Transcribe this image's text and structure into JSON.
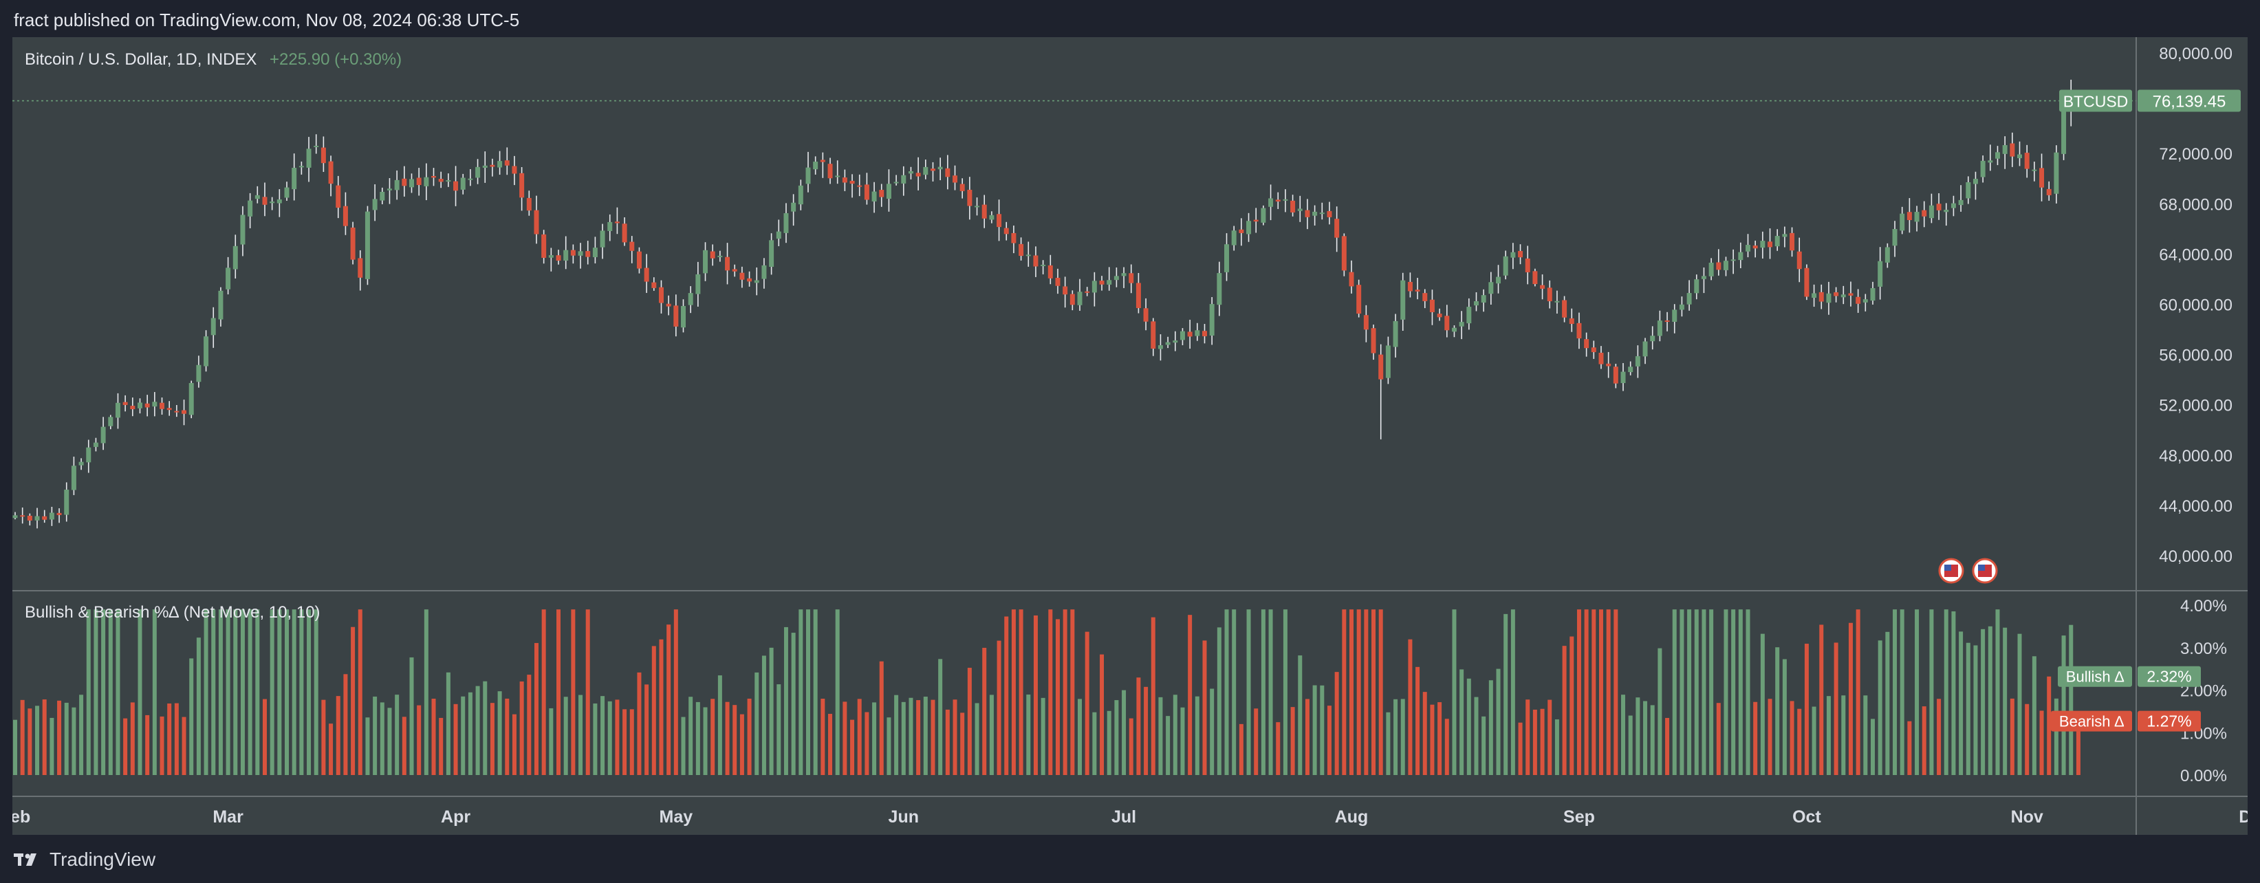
{
  "header": {
    "published_text": "fract published on TradingView.com, Nov 08, 2024 06:38 UTC-5"
  },
  "footer": {
    "brand": "TradingView"
  },
  "colors": {
    "up": "#6b9e78",
    "down": "#d9533d",
    "background": "#3a4245",
    "frame": "#1e222d",
    "text": "#e6e8ee",
    "axis_text": "#d9dce3",
    "price_line": "#6b9e78"
  },
  "chart_data": [
    {
      "type": "candlestick",
      "title": "Bitcoin / U.S. Dollar, 1D, INDEX",
      "change": "+225.90 (+0.30%)",
      "ylim": [
        36000,
        81000
      ],
      "y_ticks": [
        "80,000.00",
        "72,000.00",
        "68,000.00",
        "64,000.00",
        "60,000.00",
        "56,000.00",
        "52,000.00",
        "48,000.00",
        "44,000.00",
        "40,000.00"
      ],
      "y_tick_values": [
        80000,
        72000,
        68000,
        64000,
        60000,
        56000,
        52000,
        48000,
        44000,
        40000
      ],
      "x_ticks": [
        "Feb",
        "Mar",
        "Apr",
        "May",
        "Jun",
        "Jul",
        "Aug",
        "Sep",
        "Oct",
        "Nov",
        "Dec"
      ],
      "last_price": {
        "label": "BTCUSD",
        "value": "76,139.45",
        "price": 76139.45
      },
      "events_icon": "us-flag-icon",
      "close_anchors": [
        [
          "2024-02-01",
          43000
        ],
        [
          "2024-02-07",
          43100
        ],
        [
          "2024-02-09",
          47100
        ],
        [
          "2024-02-13",
          49800
        ],
        [
          "2024-02-15",
          52100
        ],
        [
          "2024-02-24",
          51500
        ],
        [
          "2024-02-27",
          57000
        ],
        [
          "2024-02-29",
          61200
        ],
        [
          "2024-03-04",
          68300
        ],
        [
          "2024-03-08",
          68300
        ],
        [
          "2024-03-13",
          73100
        ],
        [
          "2024-03-19",
          62000
        ],
        [
          "2024-03-20",
          67800
        ],
        [
          "2024-03-25",
          69900
        ],
        [
          "2024-04-01",
          69600
        ],
        [
          "2024-04-08",
          71600
        ],
        [
          "2024-04-13",
          63900
        ],
        [
          "2024-04-19",
          63800
        ],
        [
          "2024-04-22",
          66800
        ],
        [
          "2024-05-01",
          58300
        ],
        [
          "2024-05-05",
          64000
        ],
        [
          "2024-05-12",
          61500
        ],
        [
          "2024-05-15",
          66200
        ],
        [
          "2024-05-20",
          71400
        ],
        [
          "2024-05-27",
          68500
        ],
        [
          "2024-06-05",
          71100
        ],
        [
          "2024-06-14",
          66000
        ],
        [
          "2024-06-24",
          60300
        ],
        [
          "2024-07-01",
          62700
        ],
        [
          "2024-07-05",
          56700
        ],
        [
          "2024-07-12",
          57800
        ],
        [
          "2024-07-15",
          64700
        ],
        [
          "2024-07-21",
          68200
        ],
        [
          "2024-07-29",
          66800
        ],
        [
          "2024-08-05",
          54000
        ],
        [
          "2024-08-08",
          61700
        ],
        [
          "2024-08-15",
          57800
        ],
        [
          "2024-08-23",
          64100
        ],
        [
          "2024-09-06",
          53800
        ],
        [
          "2024-09-12",
          58200
        ],
        [
          "2024-09-19",
          62900
        ],
        [
          "2024-09-29",
          65600
        ],
        [
          "2024-10-02",
          60800
        ],
        [
          "2024-10-10",
          60300
        ],
        [
          "2024-10-15",
          67100
        ],
        [
          "2024-10-21",
          67400
        ],
        [
          "2024-10-29",
          72800
        ],
        [
          "2024-11-04",
          68800
        ],
        [
          "2024-11-06",
          75600
        ],
        [
          "2024-11-08",
          76139
        ]
      ]
    },
    {
      "type": "bar",
      "title": "Bullish & Bearish %∆ (Net Move, 10, 10)",
      "ylim": [
        0,
        4.4
      ],
      "y_ticks": [
        "4.00%",
        "3.00%",
        "2.00%",
        "1.00%",
        "0.00%"
      ],
      "y_tick_values": [
        4,
        3,
        2,
        1,
        0
      ],
      "series": [
        {
          "name": "Bullish ∆",
          "last_value": "2.32%"
        },
        {
          "name": "Bearish ∆",
          "last_value": "1.27%"
        }
      ]
    }
  ]
}
